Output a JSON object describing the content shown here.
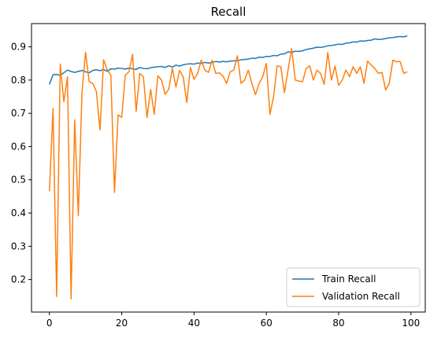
{
  "chart_data": {
    "type": "line",
    "title": "Recall",
    "xlabel": "",
    "ylabel": "",
    "xlim": [
      -4.95,
      103.95
    ],
    "ylim": [
      0.1022,
      0.9699
    ],
    "xticks": [
      0,
      20,
      40,
      60,
      80,
      100
    ],
    "yticks": [
      0.2,
      0.3,
      0.4,
      0.5,
      0.6,
      0.7,
      0.8,
      0.9
    ],
    "grid": false,
    "legend_position": "lower-right",
    "series": [
      {
        "name": "Train Recall",
        "color": "#1f77b4",
        "x": [
          0,
          1,
          2,
          3,
          4,
          5,
          6,
          7,
          8,
          9,
          10,
          11,
          12,
          13,
          14,
          15,
          16,
          17,
          18,
          19,
          20,
          21,
          22,
          23,
          24,
          25,
          26,
          27,
          28,
          29,
          30,
          31,
          32,
          33,
          34,
          35,
          36,
          37,
          38,
          39,
          40,
          41,
          42,
          43,
          44,
          45,
          46,
          47,
          48,
          49,
          50,
          51,
          52,
          53,
          54,
          55,
          56,
          57,
          58,
          59,
          60,
          61,
          62,
          63,
          64,
          65,
          66,
          67,
          68,
          69,
          70,
          71,
          72,
          73,
          74,
          75,
          76,
          77,
          78,
          79,
          80,
          81,
          82,
          83,
          84,
          85,
          86,
          87,
          88,
          89,
          90,
          91,
          92,
          93,
          94,
          95,
          96,
          97,
          98,
          99
        ],
        "values": [
          0.787,
          0.816,
          0.817,
          0.814,
          0.822,
          0.83,
          0.826,
          0.823,
          0.826,
          0.829,
          0.825,
          0.822,
          0.829,
          0.831,
          0.828,
          0.832,
          0.826,
          0.834,
          0.833,
          0.836,
          0.835,
          0.833,
          0.836,
          0.834,
          0.832,
          0.838,
          0.835,
          0.834,
          0.837,
          0.839,
          0.84,
          0.841,
          0.838,
          0.843,
          0.839,
          0.845,
          0.842,
          0.846,
          0.848,
          0.849,
          0.848,
          0.851,
          0.85,
          0.853,
          0.851,
          0.853,
          0.856,
          0.854,
          0.856,
          0.855,
          0.857,
          0.858,
          0.858,
          0.861,
          0.862,
          0.863,
          0.866,
          0.865,
          0.869,
          0.868,
          0.871,
          0.871,
          0.874,
          0.873,
          0.878,
          0.879,
          0.885,
          0.883,
          0.887,
          0.886,
          0.888,
          0.892,
          0.894,
          0.896,
          0.899,
          0.898,
          0.9,
          0.903,
          0.904,
          0.906,
          0.908,
          0.907,
          0.911,
          0.912,
          0.915,
          0.914,
          0.918,
          0.917,
          0.919,
          0.92,
          0.924,
          0.922,
          0.923,
          0.925,
          0.927,
          0.928,
          0.93,
          0.931,
          0.93,
          0.933
        ]
      },
      {
        "name": "Validation Recall",
        "color": "#ff7f0e",
        "x": [
          0,
          1,
          2,
          3,
          4,
          5,
          6,
          7,
          8,
          9,
          10,
          11,
          12,
          13,
          14,
          15,
          16,
          17,
          18,
          19,
          20,
          21,
          22,
          23,
          24,
          25,
          26,
          27,
          28,
          29,
          30,
          31,
          32,
          33,
          34,
          35,
          36,
          37,
          38,
          39,
          40,
          41,
          42,
          43,
          44,
          45,
          46,
          47,
          48,
          49,
          50,
          51,
          52,
          53,
          54,
          55,
          56,
          57,
          58,
          59,
          60,
          61,
          62,
          63,
          64,
          65,
          66,
          67,
          68,
          69,
          70,
          71,
          72,
          73,
          74,
          75,
          76,
          77,
          78,
          79,
          80,
          81,
          82,
          83,
          84,
          85,
          86,
          87,
          88,
          89,
          90,
          91,
          92,
          93,
          94,
          95,
          96,
          97,
          98,
          99
        ],
        "values": [
          0.466,
          0.715,
          0.149,
          0.848,
          0.735,
          0.81,
          0.142,
          0.68,
          0.392,
          0.76,
          0.884,
          0.795,
          0.79,
          0.765,
          0.65,
          0.861,
          0.83,
          0.815,
          0.462,
          0.695,
          0.688,
          0.815,
          0.825,
          0.877,
          0.706,
          0.82,
          0.81,
          0.687,
          0.772,
          0.697,
          0.813,
          0.8,
          0.757,
          0.772,
          0.835,
          0.779,
          0.829,
          0.81,
          0.732,
          0.838,
          0.802,
          0.82,
          0.86,
          0.83,
          0.823,
          0.86,
          0.82,
          0.822,
          0.812,
          0.79,
          0.825,
          0.83,
          0.873,
          0.79,
          0.8,
          0.83,
          0.79,
          0.756,
          0.79,
          0.81,
          0.85,
          0.697,
          0.75,
          0.843,
          0.84,
          0.762,
          0.83,
          0.895,
          0.8,
          0.797,
          0.795,
          0.834,
          0.843,
          0.8,
          0.83,
          0.82,
          0.787,
          0.883,
          0.8,
          0.842,
          0.784,
          0.8,
          0.83,
          0.81,
          0.84,
          0.82,
          0.84,
          0.79,
          0.857,
          0.845,
          0.835,
          0.82,
          0.823,
          0.77,
          0.79,
          0.86,
          0.855,
          0.856,
          0.82,
          0.825
        ]
      }
    ]
  }
}
